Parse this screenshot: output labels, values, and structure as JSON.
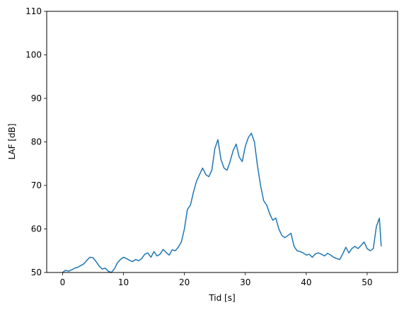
{
  "chart_data": {
    "type": "line",
    "title": "",
    "xlabel": "Tid [s]",
    "ylabel": "LAF [dB]",
    "xlim": [
      -2.6,
      55.0
    ],
    "ylim": [
      50,
      110
    ],
    "xticks": [
      0,
      10,
      20,
      30,
      40,
      50
    ],
    "yticks": [
      50,
      60,
      70,
      80,
      90,
      100,
      110
    ],
    "xtick_labels": [
      "0",
      "10",
      "20",
      "30",
      "40",
      "50"
    ],
    "ytick_labels": [
      "50",
      "60",
      "70",
      "80",
      "90",
      "100",
      "110"
    ],
    "grid": false,
    "legend": "none",
    "line_color": "#1f77b4",
    "series": [
      {
        "x": [
          0,
          0.5,
          1,
          1.5,
          2,
          2.5,
          3,
          3.5,
          4,
          4.5,
          5,
          5.5,
          6,
          6.5,
          7,
          7.5,
          8,
          8.5,
          9,
          9.5,
          10,
          10.5,
          11,
          11.5,
          12,
          12.5,
          13,
          13.5,
          14,
          14.5,
          15,
          15.5,
          16,
          16.5,
          17,
          17.5,
          18,
          18.5,
          19,
          19.5,
          20,
          20.5,
          21,
          21.5,
          22,
          22.5,
          23,
          23.5,
          24,
          24.5,
          25,
          25.5,
          26,
          26.5,
          27,
          27.5,
          28,
          28.5,
          29,
          29.5,
          30,
          30.5,
          31,
          31.5,
          32,
          32.5,
          33,
          33.5,
          34,
          34.5,
          35,
          35.5,
          36,
          36.5,
          37,
          37.5,
          38,
          38.5,
          39,
          39.5,
          40,
          40.5,
          41,
          41.5,
          42,
          42.5,
          43,
          43.5,
          44,
          44.5,
          45,
          45.5,
          46,
          46.5,
          47,
          47.5,
          48,
          48.5,
          49,
          49.5,
          50,
          50.5,
          51,
          51.5,
          52,
          52.3
        ],
        "y": [
          50.0,
          50.5,
          50.3,
          50.6,
          51.0,
          51.2,
          51.6,
          52.0,
          52.8,
          53.5,
          53.4,
          52.5,
          51.5,
          50.8,
          51.0,
          50.3,
          50.0,
          50.8,
          52.2,
          53.0,
          53.5,
          53.2,
          52.8,
          52.5,
          53.0,
          52.7,
          53.2,
          54.2,
          54.5,
          53.5,
          54.8,
          53.8,
          54.2,
          55.3,
          54.6,
          54.0,
          55.2,
          55.0,
          55.8,
          57.0,
          60.0,
          64.5,
          65.5,
          68.5,
          71.0,
          72.5,
          74.0,
          72.5,
          72.0,
          73.5,
          78.5,
          80.5,
          76.0,
          74.0,
          73.5,
          75.5,
          78.0,
          79.5,
          76.5,
          75.5,
          79.0,
          81.0,
          82.0,
          80.0,
          74.5,
          70.0,
          66.5,
          65.5,
          63.5,
          62.0,
          62.5,
          60.0,
          58.5,
          58.0,
          58.5,
          59.0,
          56.0,
          55.0,
          54.8,
          54.5,
          54.0,
          54.2,
          53.5,
          54.3,
          54.5,
          54.2,
          53.8,
          54.4,
          54.0,
          53.5,
          53.2,
          53.0,
          54.3,
          55.8,
          54.5,
          55.5,
          56.0,
          55.5,
          56.2,
          57.0,
          55.5,
          55.0,
          55.5,
          60.5,
          62.5,
          56.0
        ]
      }
    ]
  }
}
